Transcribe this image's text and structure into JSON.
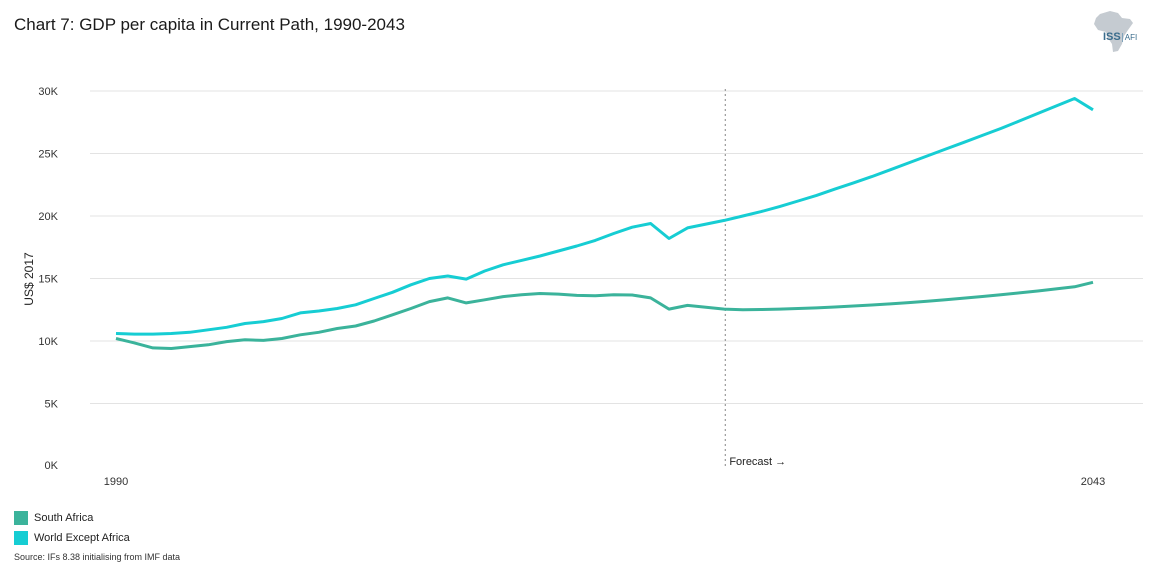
{
  "title": "Chart 7: GDP per capita in Current Path, 1990-2043",
  "logo": {
    "main": "ISS",
    "sub": "AFI"
  },
  "source": "Source: IFs 8.38 initialising from IMF data",
  "colors": {
    "south_africa": "#3bb39b",
    "world_except_africa": "#16cdd3",
    "grid": "#e3e3e3",
    "forecast": "#999999"
  },
  "chart_data": {
    "type": "line",
    "ylabel": "US$ 2017",
    "ylim": [
      0,
      30000
    ],
    "yticks": [
      0,
      5000,
      10000,
      15000,
      20000,
      25000,
      30000
    ],
    "ytick_labels": [
      "0K",
      "5K",
      "10K",
      "15K",
      "20K",
      "25K",
      "30K"
    ],
    "xlim": [
      1990,
      2043
    ],
    "xtick_labels": [
      "1990",
      "2043"
    ],
    "forecast_start": 2023,
    "forecast_label": "Forecast →",
    "legend": "bottom-left",
    "x": [
      1990,
      1991,
      1992,
      1993,
      1994,
      1995,
      1996,
      1997,
      1998,
      1999,
      2000,
      2001,
      2002,
      2003,
      2004,
      2005,
      2006,
      2007,
      2008,
      2009,
      2010,
      2011,
      2012,
      2013,
      2014,
      2015,
      2016,
      2017,
      2018,
      2019,
      2020,
      2021,
      2022,
      2023,
      2024,
      2025,
      2026,
      2027,
      2028,
      2029,
      2030,
      2031,
      2032,
      2033,
      2034,
      2035,
      2036,
      2037,
      2038,
      2039,
      2040,
      2041,
      2042,
      2043
    ],
    "series": [
      {
        "name": "South Africa",
        "color": "#3bb39b",
        "values": [
          10200,
          9850,
          9450,
          9400,
          9550,
          9700,
          9950,
          10100,
          10050,
          10200,
          10500,
          10700,
          11000,
          11200,
          11600,
          12100,
          12600,
          13150,
          13450,
          13050,
          13300,
          13550,
          13700,
          13800,
          13750,
          13650,
          13620,
          13700,
          13680,
          13450,
          12550,
          12850,
          12700,
          12550,
          12500,
          12520,
          12550,
          12600,
          12650,
          12720,
          12800,
          12880,
          12970,
          13070,
          13180,
          13300,
          13430,
          13560,
          13700,
          13850,
          14000,
          14170,
          14340,
          14700
        ]
      },
      {
        "name": "World Except Africa",
        "color": "#16cdd3",
        "values": [
          10600,
          10550,
          10550,
          10600,
          10700,
          10900,
          11100,
          11400,
          11550,
          11800,
          12250,
          12400,
          12600,
          12900,
          13400,
          13900,
          14500,
          15000,
          15200,
          14950,
          15600,
          16100,
          16450,
          16800,
          17200,
          17600,
          18050,
          18600,
          19100,
          19400,
          18200,
          19050,
          19350,
          19650,
          20000,
          20350,
          20750,
          21200,
          21650,
          22150,
          22650,
          23150,
          23700,
          24250,
          24800,
          25350,
          25900,
          26450,
          27000,
          27600,
          28200,
          28800,
          29400,
          28500
        ]
      }
    ]
  }
}
